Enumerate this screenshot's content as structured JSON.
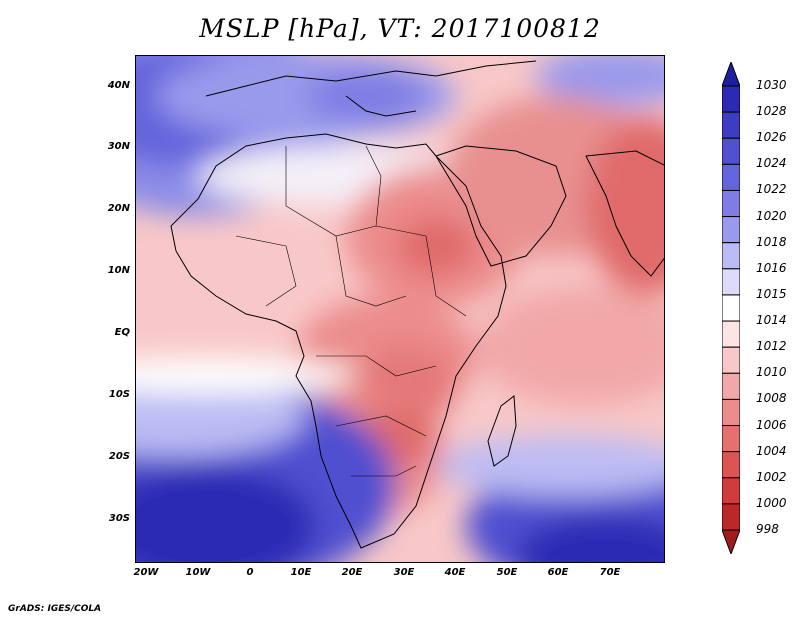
{
  "title": "MSLP [hPa], VT: 2017100812",
  "credit": "GrADS: IGES/COLA",
  "map": {
    "lat_labels": [
      "40N",
      "30N",
      "20N",
      "10N",
      "EQ",
      "10S",
      "20S",
      "30S"
    ],
    "lon_labels": [
      "20W",
      "10W",
      "0",
      "10E",
      "20E",
      "30E",
      "40E",
      "50E",
      "60E",
      "70E"
    ],
    "lon_range": [
      -25,
      80
    ],
    "lat_range": [
      -37,
      45
    ]
  },
  "colorbar": {
    "levels": [
      "1030",
      "1028",
      "1026",
      "1024",
      "1022",
      "1020",
      "1018",
      "1016",
      "1015",
      "1014",
      "1012",
      "1010",
      "1008",
      "1006",
      "1004",
      "1002",
      "1000",
      "998"
    ],
    "colors": [
      "#1e1ea0",
      "#2a2ab4",
      "#3c3cc4",
      "#5050d0",
      "#6464dc",
      "#7d7de4",
      "#9a9aec",
      "#bcbcf4",
      "#dcdcfa",
      "#ffffff",
      "#fce4e4",
      "#f8c8c8",
      "#f2a8a8",
      "#ec8c8c",
      "#e47070",
      "#dc5454",
      "#d03c3c",
      "#bc2828",
      "#a01c1c"
    ]
  }
}
